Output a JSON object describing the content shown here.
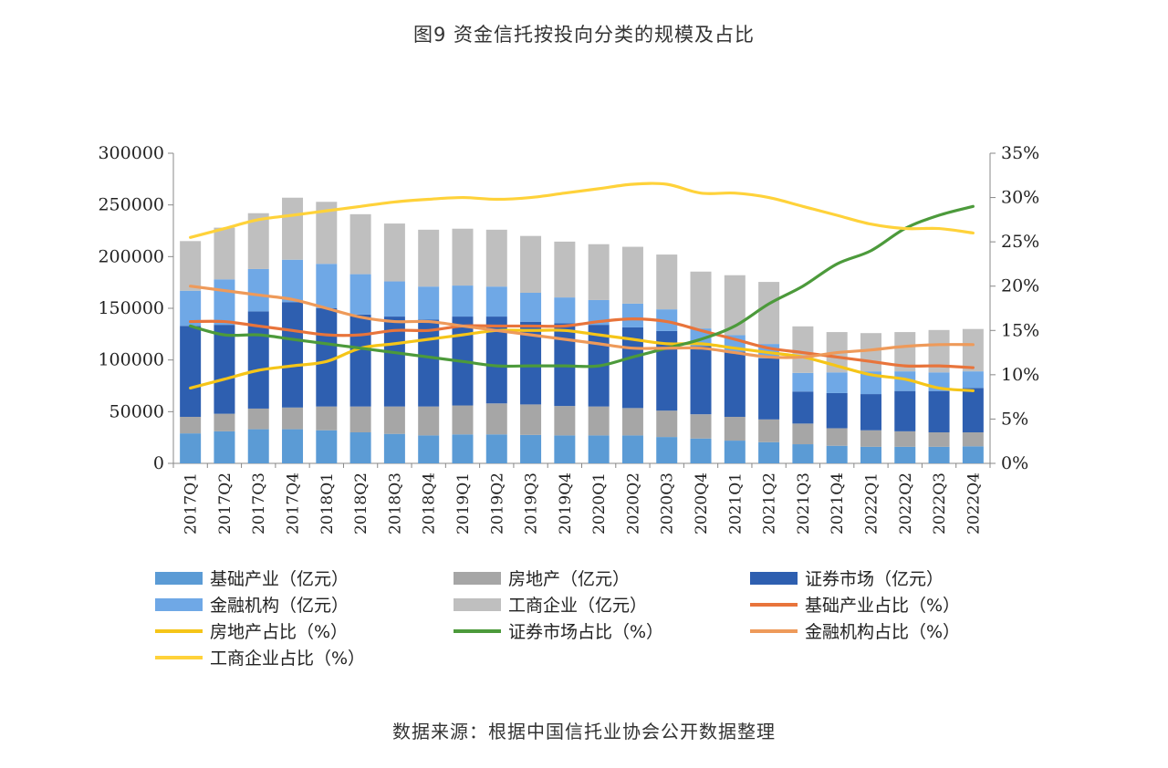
{
  "title": "图9 资金信托按投向分类的规模及占比",
  "source": "数据来源：根据中国信托业协会公开数据整理",
  "chart_data": {
    "type": "bar",
    "categories": [
      "2017Q1",
      "2017Q2",
      "2017Q3",
      "2017Q4",
      "2018Q1",
      "2018Q2",
      "2018Q3",
      "2018Q4",
      "2019Q1",
      "2019Q2",
      "2019Q3",
      "2019Q4",
      "2020Q1",
      "2020Q2",
      "2020Q3",
      "2020Q4",
      "2021Q1",
      "2021Q2",
      "2021Q3",
      "2021Q4",
      "2022Q1",
      "2022Q2",
      "2022Q3",
      "2022Q4"
    ],
    "left_axis": {
      "ylim": [
        0,
        300000
      ],
      "ticks": [
        "0",
        "50000",
        "100000",
        "150000",
        "200000",
        "250000",
        "300000"
      ]
    },
    "right_axis": {
      "ylim": [
        0,
        35
      ],
      "ticks": [
        "0%",
        "5%",
        "10%",
        "15%",
        "20%",
        "25%",
        "30%",
        "35%"
      ]
    },
    "stacked_series": [
      {
        "name": "基础产业（亿元）",
        "color": "#5b9bd5",
        "values": [
          29000,
          31000,
          33000,
          33000,
          32000,
          30000,
          28500,
          27000,
          28000,
          28000,
          27500,
          27000,
          27000,
          27000,
          25500,
          24000,
          22000,
          20500,
          18500,
          17000,
          16000,
          16000,
          16000,
          16500
        ]
      },
      {
        "name": "房地产（亿元）",
        "color": "#a6a6a6",
        "values": [
          16000,
          17000,
          20000,
          21000,
          23000,
          25000,
          26500,
          28000,
          28000,
          30000,
          29500,
          28500,
          28000,
          26500,
          25500,
          23500,
          23000,
          22000,
          20000,
          17000,
          16000,
          15000,
          14000,
          13500
        ]
      },
      {
        "name": "证券市场（亿元）",
        "color": "#2e5fb0",
        "values": [
          88000,
          86000,
          94000,
          102000,
          95000,
          89000,
          87000,
          84000,
          86000,
          84000,
          80000,
          80000,
          79000,
          78000,
          77000,
          66000,
          63000,
          59000,
          31000,
          34000,
          35000,
          39000,
          40000,
          43000
        ]
      },
      {
        "name": "金融机构（亿元）",
        "color": "#6fa8e6",
        "values": [
          34000,
          44000,
          41000,
          41000,
          43000,
          39000,
          34000,
          32000,
          30000,
          29000,
          28000,
          25000,
          24000,
          23000,
          21000,
          17000,
          16000,
          14000,
          18000,
          20000,
          22000,
          19000,
          18000,
          16000
        ]
      },
      {
        "name": "工商企业（亿元）",
        "color": "#bfbfbf",
        "values": [
          48000,
          50000,
          54000,
          60000,
          60000,
          58000,
          56000,
          55000,
          55000,
          55000,
          55000,
          54000,
          54000,
          55000,
          53000,
          55000,
          58000,
          60000,
          45000,
          39000,
          37000,
          38000,
          41000,
          41000
        ]
      }
    ],
    "line_series": [
      {
        "name": "基础产业占比（%）",
        "color": "#e8743b",
        "values": [
          16,
          16,
          15.5,
          15,
          14.5,
          14.5,
          15,
          15,
          15.5,
          15.5,
          15.5,
          15.5,
          16,
          16.3,
          16,
          15,
          14,
          13,
          12.5,
          12,
          11.5,
          11,
          11,
          10.8
        ]
      },
      {
        "name": "房地产占比（%）",
        "color": "#f5c518",
        "values": [
          8.5,
          9.5,
          10.5,
          11,
          11.5,
          13,
          13.5,
          14,
          14.5,
          15,
          15,
          15,
          14.5,
          14,
          13.5,
          13.5,
          13,
          12.5,
          12,
          11,
          10,
          9.5,
          8.5,
          8.2
        ]
      },
      {
        "name": "证券市场占比（%）",
        "color": "#4c9a3b",
        "values": [
          15.5,
          14.5,
          14.5,
          14,
          13.5,
          13,
          12.5,
          12,
          11.5,
          11,
          11,
          11,
          11,
          12,
          13,
          14,
          15.5,
          18,
          20,
          22.5,
          24,
          26.5,
          28,
          29
        ]
      },
      {
        "name": "金融机构占比（%）",
        "color": "#ee9a5a",
        "values": [
          20,
          19.5,
          19,
          18.5,
          17.5,
          16.5,
          16,
          16,
          15.5,
          15,
          14.5,
          14,
          13.5,
          13,
          13,
          13,
          12.5,
          12,
          12,
          12.5,
          12.8,
          13.2,
          13.4,
          13.4
        ]
      },
      {
        "name": "工商企业占比（%）",
        "color": "#ffd23a",
        "values": [
          25.5,
          26.5,
          27.5,
          28,
          28.5,
          29,
          29.5,
          29.8,
          30,
          29.8,
          30,
          30.5,
          31,
          31.5,
          31.5,
          30.5,
          30.5,
          30,
          29,
          28,
          27,
          26.5,
          26.5,
          26
        ]
      }
    ],
    "legend_order": [
      "基础产业（亿元）",
      "房地产（亿元）",
      "证券市场（亿元）",
      "金融机构（亿元）",
      "工商企业（亿元）",
      "基础产业占比（%）",
      "房地产占比（%）",
      "证券市场占比（%）",
      "金融机构占比（%）",
      "工商企业占比（%）"
    ],
    "legend_placement": "bottom",
    "grid": false
  }
}
